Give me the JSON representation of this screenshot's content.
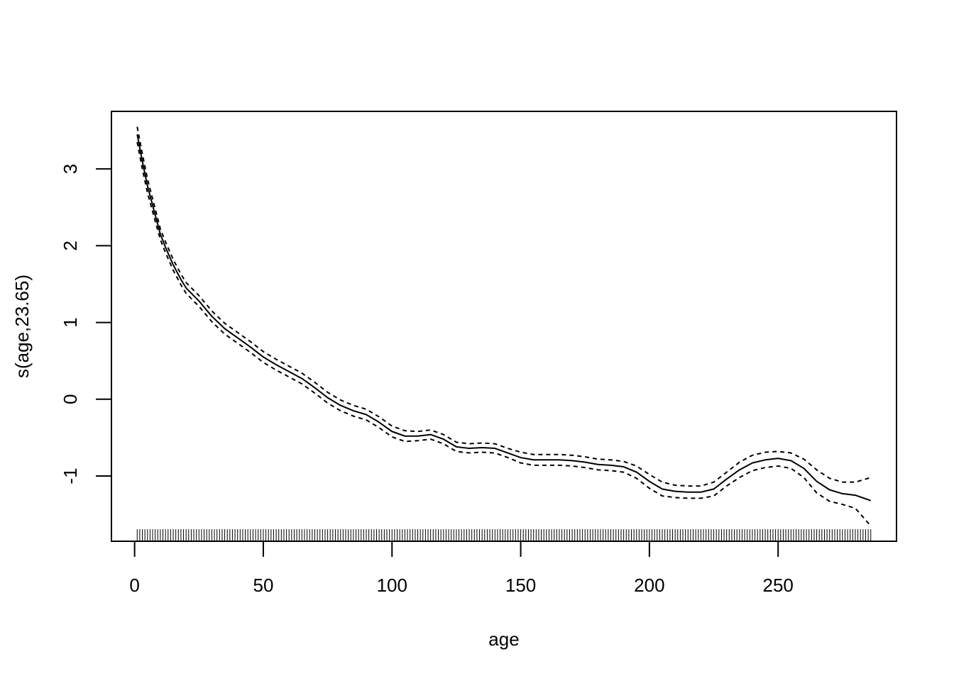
{
  "chart_data": {
    "type": "line",
    "title": "",
    "xlabel": "age",
    "ylabel": "s(age,23.65)",
    "xlim": [
      -9,
      296
    ],
    "ylim": [
      -1.85,
      3.75
    ],
    "grid": false,
    "x_ticks": [
      0,
      50,
      100,
      150,
      200,
      250
    ],
    "y_ticks": [
      -1,
      0,
      1,
      2,
      3
    ],
    "series": [
      {
        "style": "solid",
        "x": [
          1,
          3,
          5,
          8,
          10,
          12,
          15,
          18,
          20,
          25,
          30,
          35,
          40,
          45,
          50,
          55,
          60,
          65,
          70,
          75,
          80,
          85,
          90,
          95,
          100,
          105,
          110,
          115,
          120,
          125,
          130,
          135,
          140,
          145,
          150,
          155,
          160,
          165,
          170,
          175,
          180,
          185,
          190,
          195,
          200,
          205,
          210,
          215,
          220,
          225,
          230,
          235,
          240,
          245,
          250,
          255,
          260,
          265,
          270,
          275,
          280,
          286
        ],
        "y": [
          3.45,
          3.1,
          2.78,
          2.4,
          2.15,
          1.98,
          1.75,
          1.56,
          1.45,
          1.28,
          1.08,
          0.92,
          0.8,
          0.68,
          0.55,
          0.45,
          0.36,
          0.27,
          0.15,
          0.02,
          -0.08,
          -0.15,
          -0.2,
          -0.3,
          -0.42,
          -0.48,
          -0.48,
          -0.46,
          -0.52,
          -0.62,
          -0.64,
          -0.63,
          -0.64,
          -0.7,
          -0.76,
          -0.79,
          -0.79,
          -0.79,
          -0.8,
          -0.82,
          -0.85,
          -0.86,
          -0.88,
          -0.95,
          -1.07,
          -1.17,
          -1.2,
          -1.21,
          -1.21,
          -1.17,
          -1.04,
          -0.92,
          -0.83,
          -0.79,
          -0.77,
          -0.8,
          -0.9,
          -1.07,
          -1.18,
          -1.23,
          -1.25,
          -1.32
        ]
      },
      {
        "style": "dashed",
        "x": [
          1,
          3,
          5,
          8,
          10,
          12,
          15,
          18,
          20,
          25,
          30,
          35,
          40,
          45,
          50,
          55,
          60,
          65,
          70,
          75,
          80,
          85,
          90,
          95,
          100,
          105,
          110,
          115,
          120,
          125,
          130,
          135,
          140,
          145,
          150,
          155,
          160,
          165,
          170,
          175,
          180,
          185,
          190,
          195,
          200,
          205,
          210,
          215,
          220,
          225,
          230,
          235,
          240,
          245,
          250,
          255,
          260,
          265,
          270,
          275,
          280,
          286
        ],
        "y": [
          3.55,
          3.2,
          2.87,
          2.48,
          2.22,
          2.05,
          1.82,
          1.63,
          1.52,
          1.35,
          1.15,
          0.99,
          0.87,
          0.75,
          0.62,
          0.52,
          0.43,
          0.34,
          0.22,
          0.09,
          -0.01,
          -0.08,
          -0.13,
          -0.23,
          -0.35,
          -0.41,
          -0.42,
          -0.4,
          -0.46,
          -0.56,
          -0.58,
          -0.57,
          -0.58,
          -0.64,
          -0.69,
          -0.72,
          -0.72,
          -0.72,
          -0.73,
          -0.75,
          -0.78,
          -0.79,
          -0.81,
          -0.87,
          -0.98,
          -1.08,
          -1.12,
          -1.13,
          -1.13,
          -1.08,
          -0.95,
          -0.82,
          -0.73,
          -0.69,
          -0.68,
          -0.7,
          -0.78,
          -0.92,
          -1.03,
          -1.08,
          -1.08,
          -1.02
        ]
      },
      {
        "style": "dashed",
        "x": [
          1,
          3,
          5,
          8,
          10,
          12,
          15,
          18,
          20,
          25,
          30,
          35,
          40,
          45,
          50,
          55,
          60,
          65,
          70,
          75,
          80,
          85,
          90,
          95,
          100,
          105,
          110,
          115,
          120,
          125,
          130,
          135,
          140,
          145,
          150,
          155,
          160,
          165,
          170,
          175,
          180,
          185,
          190,
          195,
          200,
          205,
          210,
          215,
          220,
          225,
          230,
          235,
          240,
          245,
          250,
          255,
          260,
          265,
          270,
          275,
          280,
          286
        ],
        "y": [
          3.35,
          3.0,
          2.69,
          2.32,
          2.08,
          1.91,
          1.68,
          1.49,
          1.38,
          1.21,
          1.01,
          0.85,
          0.73,
          0.61,
          0.48,
          0.38,
          0.29,
          0.2,
          0.08,
          -0.05,
          -0.15,
          -0.22,
          -0.27,
          -0.37,
          -0.49,
          -0.55,
          -0.54,
          -0.52,
          -0.58,
          -0.68,
          -0.7,
          -0.69,
          -0.7,
          -0.76,
          -0.83,
          -0.86,
          -0.86,
          -0.86,
          -0.87,
          -0.89,
          -0.92,
          -0.93,
          -0.95,
          -1.03,
          -1.16,
          -1.26,
          -1.28,
          -1.29,
          -1.29,
          -1.26,
          -1.13,
          -1.02,
          -0.93,
          -0.89,
          -0.87,
          -0.9,
          -1.02,
          -1.22,
          -1.33,
          -1.37,
          -1.42,
          -1.65
        ]
      }
    ],
    "rug": {
      "from": 1,
      "to": 286,
      "step": 1
    }
  }
}
